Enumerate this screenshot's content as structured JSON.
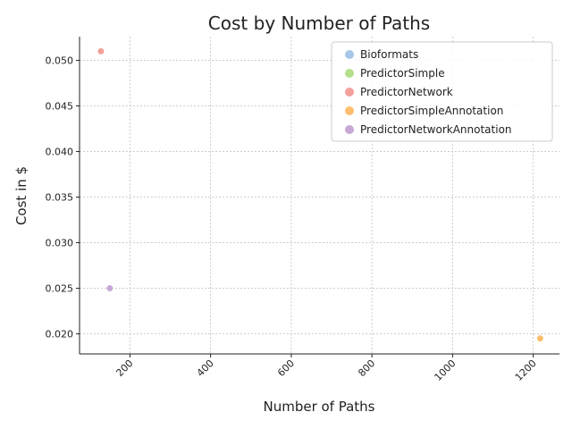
{
  "chart_data": {
    "type": "scatter",
    "title": "Cost by Number of Paths",
    "xlabel": "Number of Paths",
    "ylabel": "Cost in $",
    "xlim": [
      75,
      1265
    ],
    "ylim": [
      0.0178,
      0.0526
    ],
    "xticks": [
      "200",
      "400",
      "600",
      "800",
      "1000",
      "1200"
    ],
    "xtick_values": [
      200,
      400,
      600,
      800,
      1000,
      1200
    ],
    "yticks": [
      "0.020",
      "0.025",
      "0.030",
      "0.035",
      "0.040",
      "0.045",
      "0.050"
    ],
    "ytick_values": [
      0.02,
      0.025,
      0.03,
      0.035,
      0.04,
      0.045,
      0.05
    ],
    "grid": true,
    "legend_position": "top-right",
    "series": [
      {
        "name": "Bioformats",
        "color": "#a6c8e6",
        "points": []
      },
      {
        "name": "PredictorSimple",
        "color": "#b4e08c",
        "points": []
      },
      {
        "name": "PredictorNetwork",
        "color": "#f4a09c",
        "points": [
          {
            "x": 128,
            "y": 0.051
          }
        ]
      },
      {
        "name": "PredictorSimpleAnnotation",
        "color": "#fdbf6f",
        "points": [
          {
            "x": 1217,
            "y": 0.0195
          }
        ]
      },
      {
        "name": "PredictorNetworkAnnotation",
        "color": "#c7a8d6",
        "points": [
          {
            "x": 150,
            "y": 0.025
          }
        ]
      }
    ]
  }
}
